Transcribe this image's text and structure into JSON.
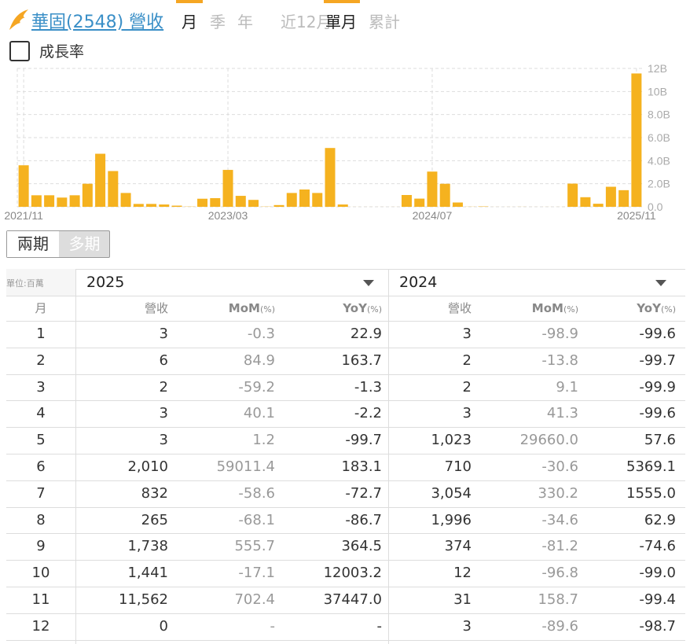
{
  "header": {
    "title": "華固(2548) 營收",
    "tabs_period": [
      "月",
      "季",
      "年",
      "近12月"
    ],
    "tabs_mode": [
      "單月",
      "累計"
    ],
    "active_period": "月",
    "active_mode": "單月",
    "checkbox_label": "成長率"
  },
  "chart_data": {
    "type": "bar",
    "color": "#f5b21f",
    "grid": true,
    "categories": [
      "2021/11",
      null,
      null,
      null,
      null,
      null,
      null,
      null,
      null,
      null,
      null,
      null,
      null,
      null,
      null,
      null,
      "2023/03",
      null,
      null,
      null,
      null,
      null,
      null,
      null,
      null,
      null,
      null,
      null,
      null,
      null,
      null,
      null,
      "2024/07",
      null,
      null,
      null,
      null,
      null,
      null,
      null,
      null,
      null,
      null,
      null,
      null,
      null,
      null,
      null,
      "2025/11"
    ],
    "values": [
      3.6,
      1.0,
      1.0,
      0.8,
      1.0,
      2.0,
      4.6,
      3.1,
      1.2,
      0.25,
      0.25,
      0.2,
      0.1,
      0.02,
      0.7,
      0.75,
      3.2,
      0.95,
      0.6,
      0.02,
      0.15,
      1.2,
      1.5,
      1.2,
      5.1,
      0.2,
      0.003,
      0.002,
      0.002,
      0.003,
      1.023,
      0.71,
      3.054,
      1.996,
      0.374,
      0.012,
      0.031,
      0.003,
      0.003,
      0.006,
      0.002,
      0.003,
      0.003,
      2.01,
      0.832,
      0.265,
      1.738,
      1.441,
      11.562
    ],
    "ylim": [
      0,
      12
    ],
    "yticks": [
      {
        "value": 0,
        "label": "0.0"
      },
      {
        "value": 2,
        "label": "2.0B"
      },
      {
        "value": 4,
        "label": "4.0B"
      },
      {
        "value": 6,
        "label": "6.0B"
      },
      {
        "value": 8,
        "label": "8.0B"
      },
      {
        "value": 10,
        "label": "10B"
      },
      {
        "value": 12,
        "label": "12B"
      }
    ]
  },
  "buttons": [
    "兩期",
    "多期"
  ],
  "table": {
    "unit": "單位:百萬",
    "years": [
      "2025",
      "2024"
    ],
    "columns": [
      "月",
      "營收",
      "MoM",
      "YoY"
    ],
    "pct": "(%)",
    "rows": [
      [
        "1",
        "3",
        "-0.3",
        "22.9",
        "3",
        "-98.9",
        "-99.6"
      ],
      [
        "2",
        "6",
        "84.9",
        "163.7",
        "2",
        "-13.8",
        "-99.7"
      ],
      [
        "3",
        "2",
        "-59.2",
        "-1.3",
        "2",
        "9.1",
        "-99.9"
      ],
      [
        "4",
        "3",
        "40.1",
        "-2.2",
        "3",
        "41.3",
        "-99.6"
      ],
      [
        "5",
        "3",
        "1.2",
        "-99.7",
        "1,023",
        "29660.0",
        "57.6"
      ],
      [
        "6",
        "2,010",
        "59011.4",
        "183.1",
        "710",
        "-30.6",
        "5369.1"
      ],
      [
        "7",
        "832",
        "-58.6",
        "-72.7",
        "3,054",
        "330.2",
        "1555.0"
      ],
      [
        "8",
        "265",
        "-68.1",
        "-86.7",
        "1,996",
        "-34.6",
        "62.9"
      ],
      [
        "9",
        "1,738",
        "555.7",
        "364.5",
        "374",
        "-81.2",
        "-74.6"
      ],
      [
        "10",
        "1,441",
        "-17.1",
        "12003.2",
        "12",
        "-96.8",
        "-99.0"
      ],
      [
        "11",
        "11,562",
        "702.4",
        "37447.0",
        "31",
        "158.7",
        "-99.4"
      ],
      [
        "12",
        "0",
        "-",
        "-",
        "3",
        "-89.6",
        "-98.7"
      ]
    ]
  }
}
